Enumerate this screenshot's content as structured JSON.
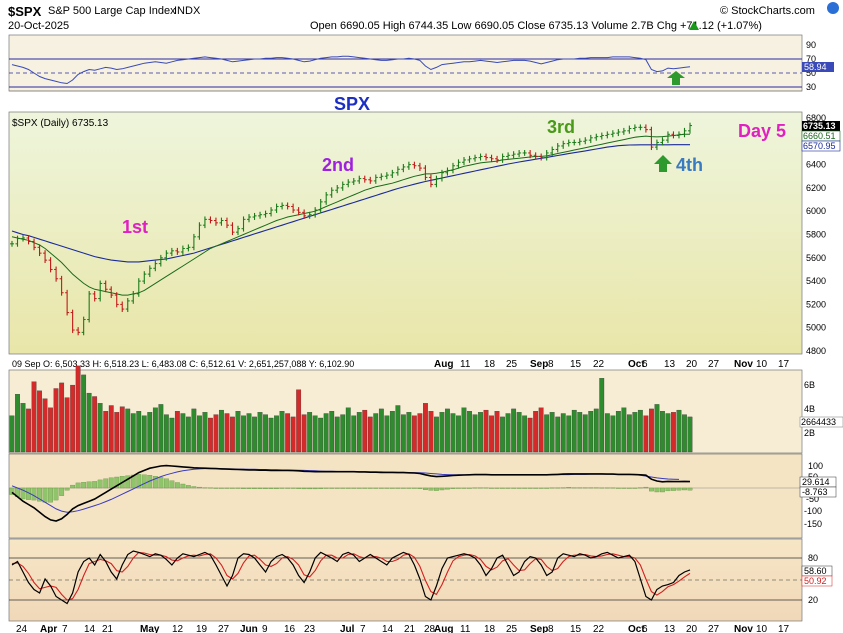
{
  "header": {
    "symbol": "$SPX",
    "name": "S&P 500 Large Cap Index",
    "exchange": "INDX",
    "watermark": "© StockCharts.com",
    "date": "20-Oct-2025",
    "ohlc_text": "Open 6690.05  High 6744.35  Low 6690.05  Close 6735.13  Volume 2.7B  Chg +71.12 (+1.07%)",
    "change_icon": "up-triangle-icon"
  },
  "rsi_panel": {
    "ticks": [
      "90",
      "70",
      "50",
      "30"
    ],
    "value_label": "58.94",
    "level_color": "#2b2b9f"
  },
  "price_panel": {
    "legend": "$SPX (Daily) 6735.13",
    "ticks": [
      "6800",
      "6600",
      "6400",
      "6200",
      "6000",
      "5800",
      "5600",
      "5400",
      "5200",
      "5000",
      "4800"
    ],
    "value_labels": [
      "6735.13",
      "6660.51",
      "6570.95"
    ],
    "annotations": [
      {
        "text": "SPX",
        "color": "#1c2fc2"
      },
      {
        "text": "1st",
        "color": "#e020c0"
      },
      {
        "text": "2nd",
        "color": "#a020e0"
      },
      {
        "text": "3rd",
        "color": "#4a9a1a"
      },
      {
        "text": "4th",
        "color": "#3a7ac0"
      },
      {
        "text": "Day 5",
        "color": "#e020c0"
      }
    ],
    "up_color": "#1a7a1a",
    "down_color": "#c01818",
    "ma_fast_color": "#1a6a1a",
    "ma_slow_color": "#1a2a9a"
  },
  "volume_panel": {
    "info": "09 Sep O: 6,503.33   H: 6,518.23   L: 6,483.08   C: 6,512.61   V: 2,651,257,088   Y: 6,102.90",
    "ticks": [
      "6B",
      "4B",
      "2B"
    ],
    "value_label": "2664433",
    "up_color": "#2e8b2e",
    "down_color": "#d42a2a"
  },
  "macd_panel": {
    "ticks": [
      "100",
      "50",
      "-50",
      "-100",
      "-150"
    ],
    "value_labels": [
      "29.614",
      "-8.763"
    ]
  },
  "stoch_panel": {
    "ticks": [
      "80",
      "20"
    ],
    "value_labels": [
      "58.60",
      "50.92"
    ]
  },
  "x_axis": {
    "labels": [
      "24",
      "Apr",
      "7",
      "14",
      "21",
      "May",
      "12",
      "19",
      "27",
      "Jun",
      "9",
      "16",
      "23",
      "Jul",
      "7",
      "14",
      "21",
      "28",
      "Aug",
      "11",
      "18",
      "25",
      "Sep",
      "8",
      "15",
      "22",
      "Oct",
      "6",
      "13",
      "20",
      "27",
      "Nov",
      "10",
      "17"
    ]
  },
  "chart_data": {
    "type": "stock-chart",
    "title": "$SPX S&P 500 Large Cap Index INDX",
    "price_close_series": [
      5720,
      5765,
      5770,
      5740,
      5690,
      5640,
      5580,
      5500,
      5420,
      5300,
      5130,
      4980,
      4960,
      5070,
      5290,
      5250,
      5380,
      5330,
      5280,
      5200,
      5160,
      5230,
      5290,
      5400,
      5460,
      5510,
      5550,
      5600,
      5640,
      5660,
      5650,
      5680,
      5690,
      5780,
      5880,
      5930,
      5920,
      5900,
      5920,
      5880,
      5820,
      5850,
      5930,
      5950,
      5960,
      5970,
      5980,
      6010,
      6040,
      6050,
      6040,
      6010,
      5990,
      5960,
      5970,
      6010,
      6080,
      6140,
      6180,
      6200,
      6230,
      6250,
      6260,
      6280,
      6270,
      6260,
      6290,
      6300,
      6310,
      6330,
      6360,
      6380,
      6400,
      6390,
      6370,
      6290,
      6230,
      6280,
      6330,
      6350,
      6390,
      6420,
      6440,
      6450,
      6460,
      6470,
      6460,
      6450,
      6440,
      6470,
      6480,
      6490,
      6500,
      6500,
      6480,
      6470,
      6460,
      6500,
      6530,
      6560,
      6580,
      6590,
      6590,
      6600,
      6610,
      6630,
      6640,
      6650,
      6660,
      6670,
      6680,
      6690,
      6710,
      6720,
      6720,
      6700,
      6550,
      6590,
      6610,
      6660,
      6650,
      6660,
      6690,
      6735
    ],
    "ma_fast_series": [
      5780,
      5770,
      5760,
      5750,
      5730,
      5710,
      5680,
      5640,
      5600,
      5560,
      5510,
      5460,
      5420,
      5380,
      5350,
      5330,
      5320,
      5310,
      5300,
      5290,
      5280,
      5280,
      5290,
      5300,
      5320,
      5350,
      5380,
      5410,
      5440,
      5470,
      5500,
      5530,
      5560,
      5590,
      5620,
      5650,
      5680,
      5700,
      5720,
      5740,
      5760,
      5780,
      5800,
      5820,
      5840,
      5860,
      5880,
      5900,
      5920,
      5935,
      5950,
      5960,
      5970,
      5980,
      5990,
      6000,
      6020,
      6040,
      6060,
      6080,
      6100,
      6120,
      6140,
      6160,
      6180,
      6195,
      6210,
      6220,
      6230,
      6240,
      6255,
      6270,
      6285,
      6300,
      6310,
      6320,
      6320,
      6325,
      6335,
      6345,
      6355,
      6370,
      6385,
      6395,
      6405,
      6415,
      6420,
      6425,
      6430,
      6440,
      6445,
      6450,
      6455,
      6460,
      6465,
      6470,
      6470,
      6475,
      6485,
      6495,
      6505,
      6515,
      6525,
      6535,
      6545,
      6555,
      6565,
      6575,
      6585,
      6595,
      6605,
      6615,
      6625,
      6635,
      6640,
      6645,
      6640,
      6638,
      6640,
      6645,
      6650,
      6655,
      6660,
      6660
    ],
    "ma_slow_series": [
      5830,
      5815,
      5800,
      5790,
      5775,
      5760,
      5745,
      5730,
      5715,
      5700,
      5685,
      5670,
      5655,
      5640,
      5625,
      5610,
      5600,
      5590,
      5580,
      5575,
      5570,
      5565,
      5565,
      5565,
      5570,
      5575,
      5580,
      5585,
      5590,
      5600,
      5610,
      5620,
      5630,
      5640,
      5655,
      5670,
      5685,
      5700,
      5715,
      5730,
      5745,
      5760,
      5775,
      5790,
      5805,
      5820,
      5835,
      5850,
      5865,
      5880,
      5895,
      5910,
      5925,
      5940,
      5955,
      5970,
      5985,
      6000,
      6015,
      6030,
      6045,
      6060,
      6075,
      6090,
      6105,
      6120,
      6135,
      6150,
      6165,
      6180,
      6195,
      6208,
      6220,
      6232,
      6244,
      6255,
      6265,
      6275,
      6285,
      6295,
      6305,
      6315,
      6325,
      6335,
      6345,
      6355,
      6365,
      6375,
      6385,
      6395,
      6405,
      6414,
      6422,
      6430,
      6438,
      6446,
      6454,
      6462,
      6470,
      6478,
      6486,
      6494,
      6502,
      6510,
      6518,
      6526,
      6534,
      6542,
      6550,
      6556,
      6562,
      6566,
      6568,
      6569,
      6570,
      6570,
      6570,
      6570,
      6570,
      6570,
      6571,
      6571,
      6571,
      6571
    ],
    "rsi_series": [
      62,
      60,
      58,
      55,
      50,
      45,
      42,
      40,
      38,
      36,
      35,
      40,
      48,
      52,
      55,
      54,
      56,
      58,
      57,
      55,
      56,
      58,
      60,
      62,
      64,
      65,
      66,
      65,
      64,
      66,
      68,
      69,
      70,
      71,
      72,
      73,
      72,
      71,
      70,
      68,
      66,
      67,
      68,
      69,
      70,
      70,
      71,
      71,
      72,
      72,
      71,
      70,
      68,
      66,
      67,
      69,
      71,
      72,
      73,
      73,
      74,
      74,
      73,
      72,
      71,
      70,
      69,
      68,
      68,
      69,
      70,
      70,
      71,
      70,
      68,
      60,
      55,
      58,
      62,
      63,
      64,
      65,
      66,
      66,
      67,
      68,
      67,
      66,
      65,
      66,
      67,
      68,
      68,
      68,
      67,
      65,
      63,
      65,
      67,
      69,
      70,
      70,
      70,
      71,
      71,
      72,
      72,
      72,
      72,
      73,
      73,
      73,
      73,
      72,
      71,
      69,
      55,
      52,
      53,
      57,
      56,
      57,
      58,
      59
    ],
    "volume_series": [
      3.2,
      5.1,
      4.3,
      3.8,
      6.2,
      5.4,
      4.7,
      3.9,
      5.6,
      6.1,
      4.8,
      5.9,
      7.6,
      6.8,
      5.2,
      4.9,
      4.3,
      3.6,
      4.1,
      3.5,
      4.0,
      3.8,
      3.4,
      3.6,
      3.2,
      3.5,
      3.9,
      4.2,
      3.3,
      3.0,
      3.6,
      3.4,
      3.1,
      3.8,
      3.2,
      3.5,
      3.0,
      3.3,
      3.7,
      3.4,
      3.1,
      3.6,
      3.2,
      3.4,
      3.1,
      3.5,
      3.3,
      3.0,
      3.2,
      3.6,
      3.4,
      3.1,
      5.5,
      3.3,
      3.5,
      3.2,
      3.0,
      3.4,
      3.6,
      3.1,
      3.3,
      3.9,
      3.2,
      3.5,
      3.7,
      3.1,
      3.4,
      3.8,
      3.2,
      3.6,
      4.1,
      3.3,
      3.5,
      3.2,
      3.4,
      4.3,
      3.6,
      3.1,
      3.5,
      3.8,
      3.4,
      3.2,
      3.9,
      3.6,
      3.3,
      3.5,
      3.7,
      3.2,
      3.6,
      3.1,
      3.4,
      3.8,
      3.5,
      3.2,
      3.0,
      3.6,
      3.9,
      3.3,
      3.5,
      3.1,
      3.4,
      3.2,
      3.7,
      3.5,
      3.3,
      3.6,
      3.8,
      6.5,
      3.4,
      3.2,
      3.6,
      3.9,
      3.3,
      3.5,
      3.7,
      3.2,
      3.8,
      4.2,
      3.6,
      3.4,
      3.5,
      3.7,
      3.3,
      3.1
    ],
    "macd_series": [
      -20,
      -40,
      -60,
      -75,
      -90,
      -110,
      -130,
      -145,
      -150,
      -140,
      -120,
      -95,
      -80,
      -70,
      -60,
      -50,
      -35,
      -20,
      -5,
      10,
      25,
      40,
      55,
      70,
      80,
      90,
      95,
      100,
      102,
      100,
      98,
      96,
      94,
      92,
      91,
      90,
      89,
      88,
      87,
      86,
      85,
      84,
      83,
      82,
      82,
      81,
      81,
      80,
      80,
      80,
      80,
      79,
      78,
      76,
      75,
      74,
      74,
      74,
      74,
      74,
      74,
      74,
      74,
      73,
      73,
      72,
      72,
      71,
      71,
      71,
      70,
      70,
      69,
      68,
      66,
      60,
      55,
      52,
      53,
      55,
      57,
      58,
      59,
      60,
      61,
      61,
      61,
      60,
      60,
      60,
      60,
      60,
      60,
      60,
      60,
      60,
      60,
      60,
      61,
      62,
      63,
      64,
      64,
      64,
      64,
      64,
      64,
      64,
      63,
      63,
      62,
      62,
      62,
      61,
      60,
      58,
      40,
      32,
      28,
      30,
      29,
      29,
      30,
      29
    ],
    "macd_signal_series": [
      10,
      0,
      -10,
      -22,
      -35,
      -50,
      -65,
      -80,
      -95,
      -105,
      -110,
      -108,
      -103,
      -96,
      -88,
      -80,
      -72,
      -62,
      -52,
      -40,
      -28,
      -16,
      -4,
      8,
      20,
      32,
      42,
      52,
      60,
      67,
      73,
      78,
      82,
      85,
      87,
      88,
      88,
      88,
      88,
      87,
      87,
      86,
      86,
      85,
      85,
      84,
      84,
      83,
      83,
      82,
      82,
      81,
      81,
      80,
      79,
      78,
      77,
      76,
      76,
      75,
      75,
      75,
      75,
      74,
      74,
      73,
      73,
      73,
      72,
      72,
      71,
      71,
      70,
      70,
      69,
      68,
      66,
      64,
      62,
      61,
      60,
      60,
      60,
      60,
      60,
      60,
      60,
      60,
      60,
      60,
      60,
      60,
      60,
      60,
      60,
      60,
      60,
      60,
      60,
      61,
      61,
      61,
      62,
      62,
      62,
      63,
      63,
      63,
      63,
      63,
      62,
      62,
      62,
      61,
      58,
      54,
      50,
      46,
      43,
      41,
      40,
      39
    ],
    "macd_histogram_series": [
      -30,
      -40,
      -50,
      -53,
      -55,
      -60,
      -65,
      -65,
      -55,
      -35,
      -10,
      13,
      23,
      26,
      28,
      30,
      37,
      42,
      47,
      50,
      53,
      56,
      59,
      62,
      60,
      58,
      53,
      48,
      42,
      33,
      25,
      18,
      12,
      7,
      4,
      2,
      1,
      0,
      -1,
      -1,
      -2,
      -2,
      -3,
      -3,
      -3,
      -3,
      -3,
      -3,
      -3,
      -2,
      -2,
      -2,
      -3,
      -4,
      -4,
      -4,
      -3,
      -2,
      -2,
      -1,
      -1,
      -1,
      -1,
      -1,
      -1,
      -1,
      -1,
      -2,
      -1,
      -1,
      -1,
      -1,
      -1,
      -2,
      -3,
      -8,
      -11,
      -12,
      -9,
      -6,
      -3,
      -2,
      -1,
      0,
      1,
      1,
      1,
      0,
      0,
      0,
      0,
      0,
      0,
      0,
      0,
      0,
      0,
      0,
      1,
      1,
      2,
      3,
      2,
      2,
      2,
      2,
      2,
      1,
      1,
      1,
      0,
      0,
      0,
      0,
      2,
      4,
      -14,
      -18,
      -18,
      -13,
      -12,
      -10,
      -9,
      -10
    ],
    "stoch_fast_series": [
      70,
      75,
      60,
      45,
      35,
      30,
      50,
      40,
      25,
      20,
      15,
      30,
      60,
      75,
      80,
      70,
      85,
      75,
      60,
      50,
      70,
      85,
      90,
      88,
      85,
      82,
      86,
      84,
      78,
      70,
      80,
      86,
      84,
      82,
      85,
      88,
      84,
      70,
      55,
      40,
      55,
      80,
      86,
      85,
      80,
      70,
      60,
      75,
      82,
      85,
      80,
      70,
      55,
      45,
      60,
      80,
      88,
      84,
      80,
      75,
      85,
      88,
      84,
      75,
      80,
      85,
      80,
      75,
      70,
      80,
      84,
      88,
      85,
      70,
      50,
      25,
      20,
      40,
      65,
      80,
      82,
      84,
      86,
      84,
      80,
      70,
      55,
      65,
      80,
      84,
      70,
      55,
      60,
      75,
      82,
      80,
      70,
      55,
      60,
      80,
      86,
      84,
      82,
      86,
      84,
      80,
      82,
      86,
      88,
      84,
      80,
      82,
      84,
      75,
      50,
      25,
      20,
      35,
      40,
      42,
      45,
      55,
      60,
      63
    ],
    "stoch_slow_series": [
      72,
      73,
      68,
      58,
      45,
      36,
      38,
      40,
      38,
      28,
      20,
      22,
      35,
      55,
      72,
      75,
      78,
      76,
      72,
      62,
      60,
      68,
      80,
      88,
      87,
      85,
      84,
      84,
      82,
      77,
      76,
      80,
      83,
      84,
      83,
      85,
      86,
      80,
      70,
      55,
      50,
      58,
      73,
      83,
      84,
      78,
      70,
      68,
      72,
      80,
      82,
      78,
      70,
      56,
      53,
      62,
      76,
      84,
      84,
      80,
      80,
      85,
      86,
      82,
      80,
      81,
      82,
      80,
      75,
      75,
      78,
      84,
      86,
      81,
      68,
      48,
      32,
      28,
      42,
      60,
      76,
      82,
      84,
      85,
      83,
      78,
      68,
      63,
      67,
      76,
      79,
      70,
      62,
      63,
      72,
      79,
      78,
      68,
      62,
      65,
      75,
      82,
      84,
      84,
      85,
      83,
      82,
      83,
      85,
      86,
      84,
      82,
      82,
      80,
      70,
      50,
      32,
      27,
      32,
      39,
      42,
      47,
      53,
      58
    ]
  }
}
